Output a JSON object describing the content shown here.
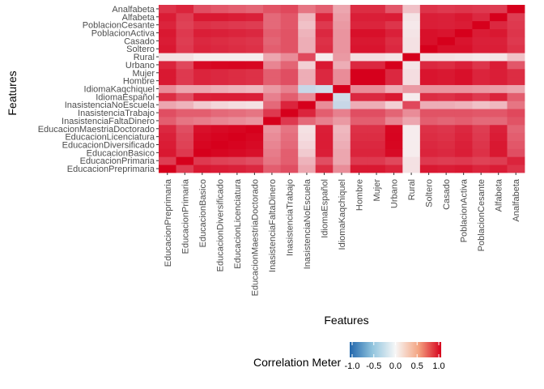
{
  "chart_data": {
    "type": "heatmap",
    "xlabel": "Features",
    "ylabel": "Features",
    "features": [
      "EducacionPreprimaria",
      "EducacionPrimaria",
      "EducacionBasico",
      "EducacionDiversificado",
      "EducacionLicenciatura",
      "EducacionMaestriaDoctorado",
      "InasistenciaFaltaDinero",
      "InasistenciaTrabajo",
      "InasistenciaNoEscuela",
      "IdiomaEspañol",
      "IdiomaKaqchiquel",
      "Hombre",
      "Mujer",
      "Urbano",
      "Rural",
      "Soltero",
      "Casado",
      "PoblacionActiva",
      "PoblacionCesante",
      "Alfabeta",
      "Analfabeta"
    ],
    "values": [
      [
        1.0,
        0.7,
        0.88,
        0.86,
        0.84,
        0.8,
        0.55,
        0.62,
        0.25,
        0.78,
        0.35,
        0.88,
        0.88,
        0.82,
        0.05,
        0.88,
        0.86,
        0.88,
        0.82,
        0.86,
        0.75
      ],
      [
        0.7,
        1.0,
        0.72,
        0.68,
        0.66,
        0.62,
        0.45,
        0.55,
        0.2,
        0.62,
        0.25,
        0.72,
        0.72,
        0.65,
        0.05,
        0.72,
        0.7,
        0.72,
        0.68,
        0.7,
        0.82
      ],
      [
        0.88,
        0.72,
        1.0,
        0.97,
        0.95,
        0.92,
        0.42,
        0.55,
        0.12,
        0.85,
        0.25,
        0.82,
        0.82,
        0.95,
        0.02,
        0.82,
        0.8,
        0.85,
        0.76,
        0.88,
        0.62
      ],
      [
        0.86,
        0.68,
        0.97,
        1.0,
        0.98,
        0.95,
        0.38,
        0.5,
        0.08,
        0.86,
        0.22,
        0.8,
        0.8,
        0.97,
        0.02,
        0.8,
        0.78,
        0.84,
        0.74,
        0.88,
        0.58
      ],
      [
        0.84,
        0.66,
        0.95,
        0.98,
        1.0,
        0.97,
        0.35,
        0.48,
        0.06,
        0.86,
        0.2,
        0.78,
        0.78,
        0.98,
        0.02,
        0.78,
        0.76,
        0.82,
        0.72,
        0.86,
        0.55
      ],
      [
        0.8,
        0.62,
        0.92,
        0.95,
        0.97,
        1.0,
        0.32,
        0.45,
        0.05,
        0.85,
        0.18,
        0.76,
        0.76,
        0.97,
        0.02,
        0.76,
        0.74,
        0.8,
        0.7,
        0.84,
        0.52
      ],
      [
        0.55,
        0.45,
        0.42,
        0.38,
        0.35,
        0.32,
        1.0,
        0.72,
        0.5,
        0.4,
        0.3,
        0.55,
        0.55,
        0.38,
        0.25,
        0.55,
        0.52,
        0.55,
        0.5,
        0.5,
        0.6
      ],
      [
        0.62,
        0.55,
        0.55,
        0.5,
        0.48,
        0.45,
        0.72,
        1.0,
        0.82,
        0.55,
        0.4,
        0.62,
        0.62,
        0.52,
        0.35,
        0.6,
        0.6,
        0.6,
        0.58,
        0.58,
        0.65
      ],
      [
        0.25,
        0.2,
        0.12,
        0.08,
        0.06,
        0.05,
        0.5,
        0.82,
        1.0,
        0.35,
        -0.15,
        0.22,
        0.22,
        0.1,
        0.65,
        0.22,
        0.22,
        0.2,
        0.15,
        0.18,
        0.45
      ],
      [
        0.78,
        0.62,
        0.85,
        0.86,
        0.86,
        0.85,
        0.4,
        0.55,
        0.35,
        1.0,
        -0.12,
        0.8,
        0.8,
        0.88,
        0.02,
        0.78,
        0.76,
        0.8,
        0.72,
        0.82,
        0.55
      ],
      [
        0.35,
        0.25,
        0.25,
        0.22,
        0.2,
        0.18,
        0.3,
        0.4,
        -0.15,
        -0.12,
        1.0,
        0.35,
        0.35,
        0.22,
        0.3,
        0.32,
        0.32,
        0.32,
        0.3,
        0.28,
        0.25
      ],
      [
        0.88,
        0.72,
        0.82,
        0.8,
        0.78,
        0.76,
        0.55,
        0.62,
        0.22,
        0.8,
        0.35,
        1.0,
        1.0,
        0.8,
        0.06,
        0.9,
        0.88,
        0.92,
        0.82,
        0.85,
        0.78
      ],
      [
        0.88,
        0.72,
        0.82,
        0.8,
        0.78,
        0.76,
        0.55,
        0.62,
        0.22,
        0.8,
        0.35,
        1.0,
        1.0,
        0.8,
        0.06,
        0.9,
        0.88,
        0.92,
        0.82,
        0.85,
        0.78
      ],
      [
        0.82,
        0.65,
        0.95,
        0.97,
        0.98,
        0.97,
        0.38,
        0.52,
        0.1,
        0.88,
        0.22,
        0.8,
        0.8,
        1.0,
        0.04,
        0.8,
        0.78,
        0.84,
        0.74,
        0.86,
        0.58
      ],
      [
        0.05,
        0.05,
        0.02,
        0.02,
        0.02,
        0.02,
        0.25,
        0.35,
        0.65,
        0.02,
        0.3,
        0.06,
        0.06,
        0.04,
        1.0,
        0.05,
        0.05,
        0.04,
        0.03,
        0.04,
        0.15
      ],
      [
        0.88,
        0.72,
        0.82,
        0.8,
        0.78,
        0.76,
        0.55,
        0.6,
        0.22,
        0.78,
        0.32,
        0.9,
        0.9,
        0.8,
        0.05,
        1.0,
        0.92,
        0.92,
        0.85,
        0.85,
        0.75
      ],
      [
        0.86,
        0.7,
        0.8,
        0.78,
        0.76,
        0.74,
        0.52,
        0.6,
        0.22,
        0.76,
        0.32,
        0.88,
        0.88,
        0.78,
        0.05,
        0.92,
        1.0,
        0.9,
        0.84,
        0.84,
        0.72
      ],
      [
        0.88,
        0.72,
        0.85,
        0.84,
        0.82,
        0.8,
        0.55,
        0.6,
        0.2,
        0.8,
        0.32,
        0.92,
        0.92,
        0.84,
        0.04,
        0.92,
        0.9,
        1.0,
        0.86,
        0.88,
        0.74
      ],
      [
        0.82,
        0.68,
        0.76,
        0.74,
        0.72,
        0.7,
        0.5,
        0.58,
        0.15,
        0.72,
        0.3,
        0.82,
        0.82,
        0.74,
        0.03,
        0.85,
        0.84,
        0.86,
        1.0,
        0.8,
        0.72
      ],
      [
        0.86,
        0.7,
        0.88,
        0.88,
        0.86,
        0.84,
        0.5,
        0.58,
        0.18,
        0.82,
        0.28,
        0.85,
        0.85,
        0.86,
        0.04,
        0.85,
        0.84,
        0.88,
        0.8,
        1.0,
        0.7
      ],
      [
        0.75,
        0.82,
        0.62,
        0.58,
        0.55,
        0.52,
        0.6,
        0.65,
        0.45,
        0.55,
        0.25,
        0.78,
        0.78,
        0.58,
        0.15,
        0.75,
        0.72,
        0.74,
        0.72,
        0.7,
        1.0
      ]
    ],
    "color_scale": {
      "low": "#2166ac",
      "mid": "#f7f7f7",
      "high": "#d6001c",
      "range": [
        -1,
        1
      ]
    },
    "legend": {
      "title": "Correlation Meter",
      "ticks": [
        "-1.0",
        "-0.5",
        "0.0",
        "0.5",
        "1.0"
      ],
      "tick_values": [
        -1.0,
        -0.5,
        0.0,
        0.5,
        1.0
      ],
      "position": "bottom"
    }
  }
}
